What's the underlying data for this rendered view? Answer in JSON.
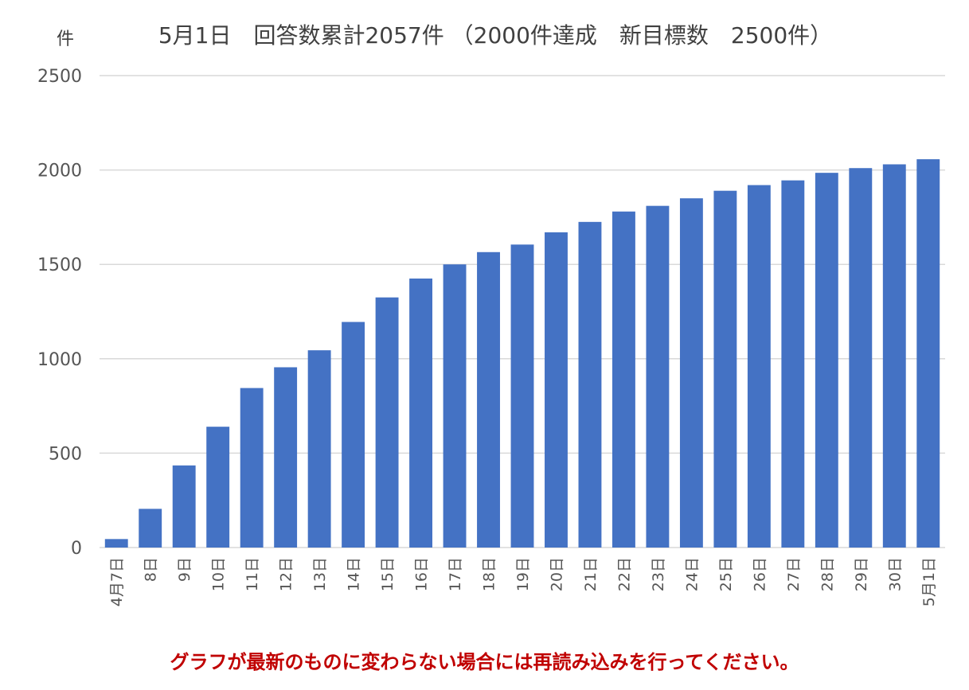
{
  "chart_data": {
    "type": "bar",
    "title": "5月1日　回答数累計2057件 （2000件達成　新目標数　2500件）",
    "ylabel": "件",
    "xlabel": "",
    "ylim": [
      0,
      2500
    ],
    "yticks": [
      0,
      500,
      1000,
      1500,
      2000,
      2500
    ],
    "grid": true,
    "legend": "none",
    "bar_color": "#4472c4",
    "categories": [
      "4月7日",
      "8日",
      "9日",
      "10日",
      "11日",
      "12日",
      "13日",
      "14日",
      "15日",
      "16日",
      "17日",
      "18日",
      "19日",
      "20日",
      "21日",
      "22日",
      "23日",
      "24日",
      "25日",
      "26日",
      "27日",
      "28日",
      "29日",
      "30日",
      "5月1日"
    ],
    "values": [
      45,
      205,
      435,
      640,
      845,
      955,
      1045,
      1195,
      1325,
      1425,
      1500,
      1565,
      1605,
      1670,
      1725,
      1780,
      1810,
      1850,
      1890,
      1920,
      1945,
      1985,
      2010,
      2030,
      2057
    ]
  },
  "footnote": "グラフが最新のものに変わらない場合には再読み込みを行ってください。",
  "colors": {
    "bar": "#4472c4",
    "footnote": "#c00000",
    "grid": "#d9d9d9"
  }
}
